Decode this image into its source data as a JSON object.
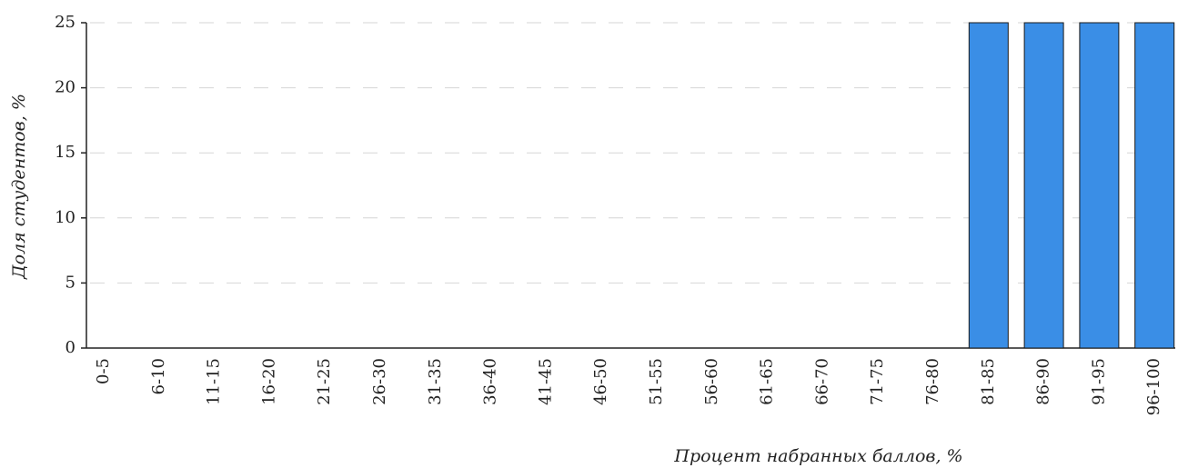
{
  "chart_data": {
    "type": "bar",
    "categories": [
      "0-5",
      "6-10",
      "11-15",
      "16-20",
      "21-25",
      "26-30",
      "31-35",
      "36-40",
      "41-45",
      "46-50",
      "51-55",
      "56-60",
      "61-65",
      "66-70",
      "71-75",
      "76-80",
      "81-85",
      "86-90",
      "91-95",
      "96-100"
    ],
    "values": [
      0,
      0,
      0,
      0,
      0,
      0,
      0,
      0,
      0,
      0,
      0,
      0,
      0,
      0,
      0,
      0,
      25,
      25,
      25,
      25
    ],
    "color": "#3a8ee6",
    "ylim": [
      0,
      25
    ],
    "yticks": [
      0,
      5,
      10,
      15,
      20,
      25
    ],
    "grid": true,
    "xlabel": "Процент набранных баллов, %",
    "ylabel": "Доля студентов, %"
  }
}
